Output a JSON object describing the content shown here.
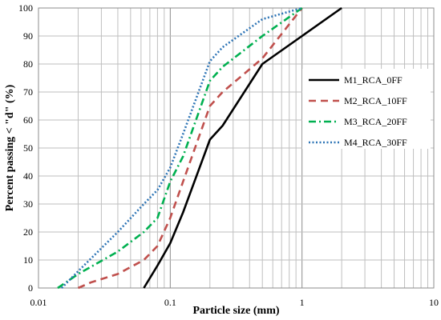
{
  "chart_data": {
    "type": "line",
    "title": "",
    "xlabel": "Particle size (mm)",
    "ylabel": "Percent passing < \"d\" (%)",
    "xscale": "log",
    "xlim": [
      0.01,
      10
    ],
    "ylim": [
      0,
      100
    ],
    "x_ticks": [
      "0.01",
      "0.1",
      "1",
      "10"
    ],
    "y_ticks": [
      "0",
      "10",
      "20",
      "30",
      "40",
      "50",
      "60",
      "70",
      "80",
      "90",
      "100"
    ],
    "grid": true,
    "legend_position": "right",
    "series": [
      {
        "name": "M1_RCA_0FF",
        "color": "#000000",
        "style": "solid",
        "points": [
          [
            0.063,
            0
          ],
          [
            0.08,
            8
          ],
          [
            0.1,
            16
          ],
          [
            0.125,
            27
          ],
          [
            0.2,
            53
          ],
          [
            0.25,
            58
          ],
          [
            0.5,
            80
          ],
          [
            1,
            90
          ],
          [
            2,
            100
          ]
        ]
      },
      {
        "name": "M2_RCA_10FF",
        "color": "#c0504d",
        "style": "dashed",
        "points": [
          [
            0.02,
            0
          ],
          [
            0.025,
            2
          ],
          [
            0.04,
            5
          ],
          [
            0.063,
            10
          ],
          [
            0.08,
            15
          ],
          [
            0.1,
            25
          ],
          [
            0.125,
            38
          ],
          [
            0.2,
            65
          ],
          [
            0.25,
            70
          ],
          [
            0.5,
            82
          ],
          [
            1,
            100
          ]
        ]
      },
      {
        "name": "M3_RCA_20FF",
        "color": "#00b050",
        "style": "dashdot",
        "points": [
          [
            0.014,
            0
          ],
          [
            0.02,
            5
          ],
          [
            0.04,
            13
          ],
          [
            0.063,
            20
          ],
          [
            0.08,
            25
          ],
          [
            0.1,
            38
          ],
          [
            0.125,
            47
          ],
          [
            0.2,
            74
          ],
          [
            0.25,
            79
          ],
          [
            0.5,
            90
          ],
          [
            1,
            100
          ]
        ]
      },
      {
        "name": "M4_RCA_30FF",
        "color": "#2e75b6",
        "style": "dotted",
        "points": [
          [
            0.015,
            0
          ],
          [
            0.02,
            6
          ],
          [
            0.04,
            20
          ],
          [
            0.063,
            30
          ],
          [
            0.08,
            35
          ],
          [
            0.1,
            43
          ],
          [
            0.125,
            55
          ],
          [
            0.2,
            81
          ],
          [
            0.25,
            86
          ],
          [
            0.5,
            96
          ],
          [
            1,
            100
          ]
        ]
      }
    ]
  }
}
